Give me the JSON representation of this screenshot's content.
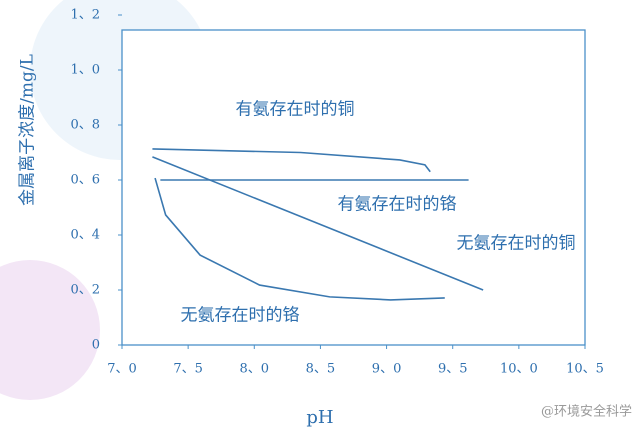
{
  "chart_data": {
    "type": "line",
    "x_label": "pH",
    "y_label": "金属离子浓度/mg/L",
    "xlim": [
      7.0,
      10.5
    ],
    "ylim": [
      0,
      1.2
    ],
    "xticks": [
      {
        "value": 7.0,
        "label": "7、0"
      },
      {
        "value": 7.5,
        "label": "7、5"
      },
      {
        "value": 8.0,
        "label": "8、0"
      },
      {
        "value": 8.5,
        "label": "8、5"
      },
      {
        "value": 9.0,
        "label": "9、0"
      },
      {
        "value": 9.5,
        "label": "9、5"
      },
      {
        "value": 10.0,
        "label": "10、0"
      },
      {
        "value": 10.5,
        "label": "10、5"
      }
    ],
    "yticks": [
      0,
      {
        "value": 0.2,
        "label": "0、2"
      },
      {
        "value": 0.4,
        "label": "0、4"
      },
      {
        "value": 0.6,
        "label": "0、6"
      },
      {
        "value": 0.8,
        "label": "0、8"
      },
      {
        "value": 1.0,
        "label": "1、0"
      },
      {
        "value": 1.2,
        "label": "1、2"
      }
    ],
    "series": [
      {
        "name": "有氨存在时的铜",
        "color": "#3a78b0",
        "x": [
          7.23,
          8.35,
          9.1,
          9.29,
          9.33
        ],
        "values": [
          0.713,
          0.7,
          0.673,
          0.655,
          0.63
        ]
      },
      {
        "name": "有氨存在时的铬",
        "color": "#3a78b0",
        "x": [
          7.29,
          9.62
        ],
        "values": [
          0.6,
          0.6
        ]
      },
      {
        "name": "无氨存在时的铜",
        "color": "#3a78b0",
        "x": [
          7.23,
          9.73
        ],
        "values": [
          0.684,
          0.2
        ]
      },
      {
        "name": "无氨存在时的铬",
        "color": "#3a78b0",
        "x": [
          7.25,
          7.33,
          7.59,
          8.04,
          8.57,
          9.03,
          9.44
        ],
        "values": [
          0.607,
          0.473,
          0.327,
          0.218,
          0.175,
          0.164,
          0.171
        ]
      }
    ],
    "watermark": "@环境安全科学"
  }
}
